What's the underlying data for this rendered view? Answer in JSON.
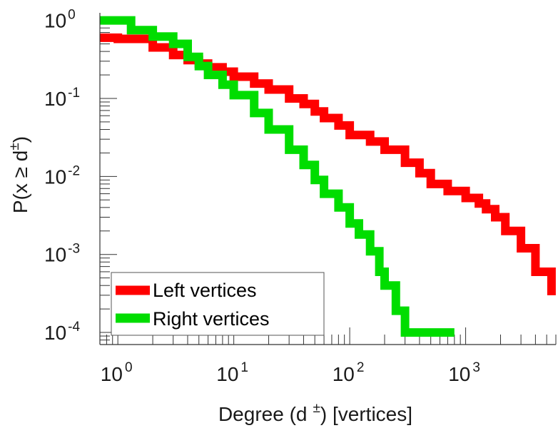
{
  "chart_data": {
    "type": "line",
    "xscale": "log",
    "yscale": "log",
    "xlim": [
      0.7,
      6000
    ],
    "ylim": [
      7e-05,
      1.25
    ],
    "xlabel": "Degree (d",
    "xlabel_sup": "±",
    "xlabel_suffix": ") [vertices]",
    "ylabel": "P(x ≥ d",
    "ylabel_sup": "±",
    "ylabel_suffix": ")",
    "x_ticks": [
      {
        "value": 1,
        "base": "10",
        "exp": "0"
      },
      {
        "value": 10,
        "base": "10",
        "exp": "1"
      },
      {
        "value": 100,
        "base": "10",
        "exp": "2"
      },
      {
        "value": 1000,
        "base": "10",
        "exp": "3"
      }
    ],
    "y_ticks": [
      {
        "value": 1,
        "base": "10",
        "exp": "0"
      },
      {
        "value": 0.1,
        "base": "10",
        "exp": "-1"
      },
      {
        "value": 0.01,
        "base": "10",
        "exp": "-2"
      },
      {
        "value": 0.001,
        "base": "10",
        "exp": "-3"
      },
      {
        "value": 0.0001,
        "base": "10",
        "exp": "-4"
      }
    ],
    "legend_position": "bottom-left",
    "series": [
      {
        "name": "Left vertices",
        "color": "#ff0000",
        "x": [
          0.7,
          1,
          2,
          3,
          4,
          5,
          6,
          8,
          10,
          15,
          20,
          30,
          40,
          50,
          60,
          80,
          100,
          150,
          200,
          300,
          400,
          500,
          700,
          1000,
          1300,
          1500,
          1800,
          2200,
          3000,
          4000,
          5500
        ],
        "y": [
          0.6,
          0.58,
          0.45,
          0.36,
          0.31,
          0.28,
          0.25,
          0.22,
          0.19,
          0.155,
          0.13,
          0.1,
          0.085,
          0.068,
          0.056,
          0.045,
          0.034,
          0.028,
          0.022,
          0.015,
          0.011,
          0.008,
          0.0065,
          0.0053,
          0.0045,
          0.0038,
          0.003,
          0.002,
          0.0012,
          0.0006,
          0.0003
        ]
      },
      {
        "name": "Right vertices",
        "color": "#00dd00",
        "x": [
          0.7,
          1,
          1.3,
          2,
          3,
          4,
          5,
          6,
          8,
          10,
          15,
          20,
          30,
          40,
          50,
          60,
          80,
          100,
          120,
          150,
          180,
          200,
          250,
          300,
          400,
          600,
          800
        ],
        "y": [
          1.0,
          1.0,
          0.75,
          0.62,
          0.5,
          0.34,
          0.26,
          0.2,
          0.15,
          0.11,
          0.065,
          0.04,
          0.022,
          0.014,
          0.009,
          0.006,
          0.004,
          0.0025,
          0.0018,
          0.0011,
          0.0006,
          0.0004,
          0.00019,
          0.0001,
          0.0001,
          0.0001,
          0.0001
        ]
      }
    ]
  }
}
